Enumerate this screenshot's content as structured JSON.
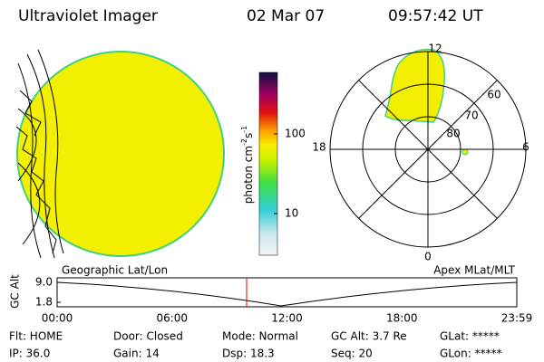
{
  "header": {
    "instrument": "Ultraviolet Imager",
    "date": "02 Mar 07",
    "time": "09:57:42 UT"
  },
  "colorbar": {
    "label_parts": [
      "photon cm",
      "-2",
      "s",
      "-1"
    ],
    "ylim": [
      3,
      590
    ],
    "log": true,
    "yticks": [
      10,
      100
    ]
  },
  "polar": {
    "clock": [
      "12",
      "18",
      "6",
      "0"
    ],
    "rings": [
      "60",
      "70",
      "80"
    ]
  },
  "gc_alt": {
    "title_left": "Geographic Lat/Lon",
    "title_right": "Apex MLat/MLT",
    "axis_label": "GC Alt",
    "yticks": [
      {
        "value": 9.0,
        "label": "9.0"
      },
      {
        "value": 1.8,
        "label": "1.8"
      }
    ],
    "xticks": [
      "00:00",
      "06:00",
      "12:00",
      "18:00",
      "23:59"
    ]
  },
  "status": [
    [
      "Flt: HOME",
      "Door: Closed",
      "Mode: Normal",
      "GC Alt: 3.7 Re",
      "GLat: *****"
    ],
    [
      "IP: 36.0",
      "Gain: 14",
      "Dsp: 18.3",
      "Seq: 20",
      "GLon: *****"
    ]
  ]
}
